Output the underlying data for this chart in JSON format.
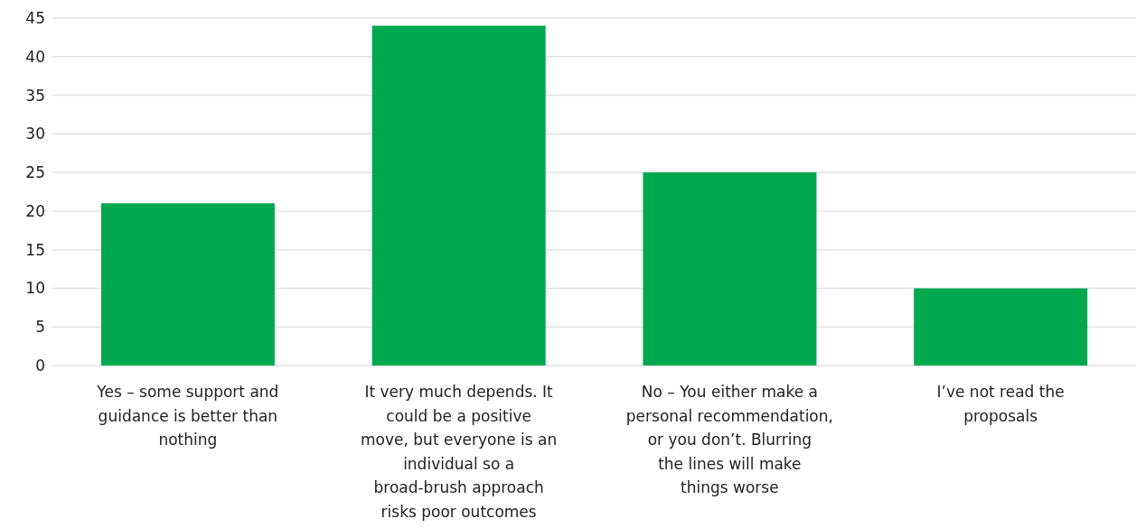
{
  "chart_data": {
    "type": "bar",
    "categories": [
      "Yes – some support and guidance is better than nothing",
      "It very much depends. It could be a positive move, but everyone is an individual so a broad-brush approach risks poor outcomes",
      "No – You either make a personal recommendation, or you don’t. Blurring the lines will make things worse",
      "I’ve not read the proposals"
    ],
    "values": [
      21,
      44,
      25,
      10
    ],
    "color": "#00a850",
    "ylim": [
      0,
      45
    ],
    "yticks": [
      0,
      5,
      10,
      15,
      20,
      25,
      30,
      35,
      40,
      45
    ],
    "grid": "y",
    "legend": false
  }
}
